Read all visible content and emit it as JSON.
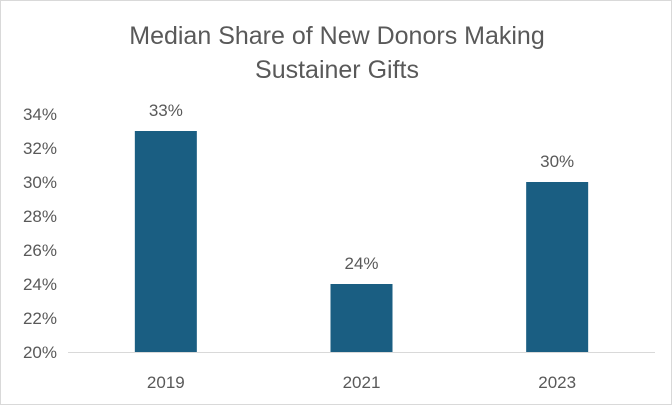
{
  "chart_data": {
    "type": "bar",
    "title_lines": [
      "Median Share of New Donors Making",
      "Sustainer Gifts"
    ],
    "categories": [
      "2019",
      "2021",
      "2023"
    ],
    "values": [
      33,
      24,
      30
    ],
    "data_labels": [
      "33%",
      "24%",
      "30%"
    ],
    "ylim": [
      20,
      34
    ],
    "yticks": [
      20,
      22,
      24,
      26,
      28,
      30,
      32,
      34
    ],
    "ytick_labels": [
      "20%",
      "22%",
      "24%",
      "26%",
      "28%",
      "30%",
      "32%",
      "34%"
    ],
    "grid": false,
    "legend": "none",
    "bar_color": "#1a5e82",
    "text_color": "#595959",
    "axis_color": "#d9d9d9"
  }
}
